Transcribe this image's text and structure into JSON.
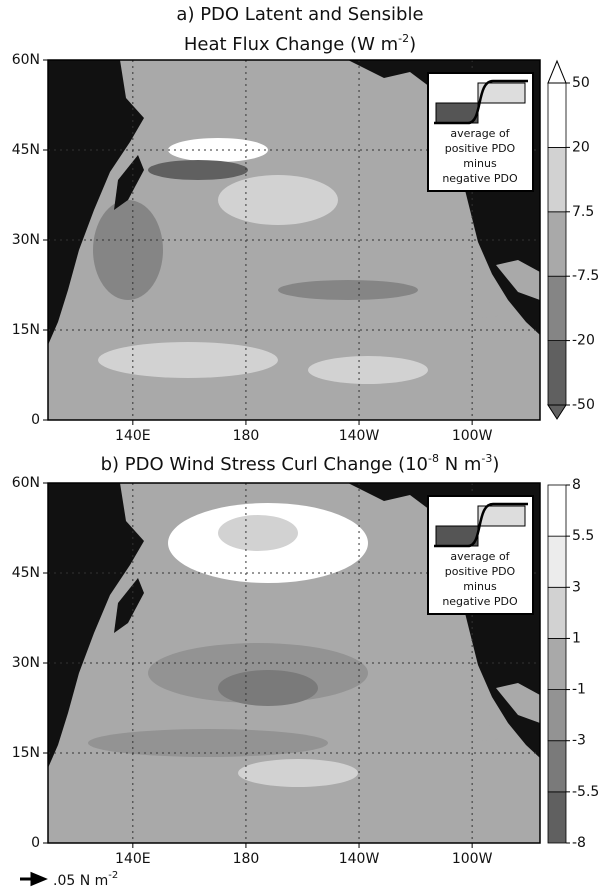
{
  "panels": [
    {
      "title": [
        [
          "a) PDO Latent and Sensible"
        ],
        [
          "Heat Flux Change (W m",
          "-2",
          ")"
        ]
      ],
      "xlim": [
        110,
        284
      ],
      "ylim": [
        0,
        60
      ],
      "xticks": [
        {
          "value": 140,
          "label": "140E"
        },
        180,
        {
          "value": 220,
          "label": "140W"
        },
        {
          "value": 260,
          "label": "100W"
        }
      ],
      "yticks": [
        0,
        {
          "value": 15,
          "label": "15N"
        },
        {
          "value": 30,
          "label": "30N"
        },
        {
          "value": 45,
          "label": "45N"
        },
        {
          "value": 60,
          "label": "60N"
        }
      ],
      "colorbar": {
        "ticks": [
          -50,
          -20,
          -7.5,
          7.5,
          20,
          50
        ],
        "colors": [
          "#606060",
          "#858585",
          "#a9a9a9",
          "#d2d2d2",
          "#ffffff"
        ],
        "extend": true
      },
      "inset": [
        "average of",
        "positive PDO",
        "minus",
        "negative PDO"
      ]
    },
    {
      "title": [
        [
          "b) PDO Wind Stress Curl Change (10",
          "-8",
          " N m",
          "-3",
          ")"
        ]
      ],
      "xlim": [
        110,
        284
      ],
      "ylim": [
        0,
        60
      ],
      "xticks": [
        {
          "value": 140,
          "label": "140E"
        },
        180,
        {
          "value": 220,
          "label": "140W"
        },
        {
          "value": 260,
          "label": "100W"
        }
      ],
      "yticks": [
        0,
        {
          "value": 15,
          "label": "15N"
        },
        {
          "value": 30,
          "label": "30N"
        },
        {
          "value": 45,
          "label": "45N"
        },
        {
          "value": 60,
          "label": "60N"
        }
      ],
      "colorbar": {
        "ticks": [
          -8,
          -5.5,
          -3,
          -1,
          1,
          3,
          5.5,
          8
        ],
        "colors": [
          "#606060",
          "#7a7a7a",
          "#939393",
          "#a9a9a9",
          "#d2d2d2",
          "#ececec",
          "#ffffff"
        ],
        "extend": false
      },
      "inset": [
        "average of",
        "positive PDO",
        "minus",
        "negative PDO"
      ]
    }
  ],
  "vector_key": {
    "label": ".05 N m",
    "exponent": "-2"
  }
}
